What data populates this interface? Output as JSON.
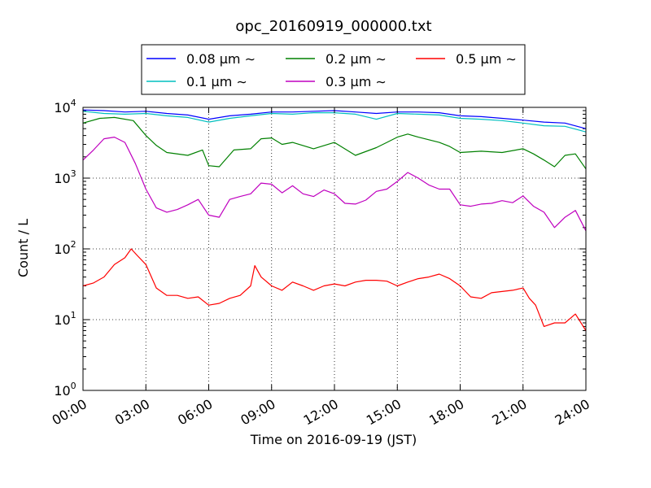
{
  "chart_data": {
    "type": "line",
    "title": "opc_20160919_000000.txt",
    "xlabel": "Time on 2016-09-19 (JST)",
    "ylabel": "Count / L",
    "x_tick_labels": [
      "00:00",
      "03:00",
      "06:00",
      "09:00",
      "12:00",
      "15:00",
      "18:00",
      "21:00",
      "24:00"
    ],
    "x_ticks_hours": [
      0,
      3,
      6,
      9,
      12,
      15,
      18,
      21,
      24
    ],
    "xlim": [
      "2016-09-19 00:00",
      "2016-09-20 00:00"
    ],
    "y_scale": "log",
    "ylim": [
      1,
      10000
    ],
    "y_tick_labels": [
      {
        "base": "10",
        "exp": "0"
      },
      {
        "base": "10",
        "exp": "1"
      },
      {
        "base": "10",
        "exp": "2"
      },
      {
        "base": "10",
        "exp": "3"
      },
      {
        "base": "10",
        "exp": "4"
      }
    ],
    "grid": true,
    "legend_position": "top",
    "series": [
      {
        "name": "0.08 μm ∼",
        "color": "#0000ff",
        "hours": [
          0,
          1,
          2,
          3,
          4,
          5,
          6,
          7,
          8,
          9,
          10,
          11,
          12,
          13,
          14,
          15,
          16,
          17,
          18,
          19,
          20,
          21,
          22,
          23,
          24
        ],
        "values": [
          9200,
          9000,
          8600,
          8800,
          8200,
          7800,
          6800,
          7600,
          8000,
          8600,
          8600,
          8800,
          9000,
          8600,
          8200,
          8600,
          8600,
          8400,
          7600,
          7400,
          7000,
          6600,
          6200,
          6000,
          5000
        ]
      },
      {
        "name": "0.1 μm ∼",
        "color": "#00bfbf",
        "hours": [
          0,
          1,
          2,
          3,
          4,
          5,
          6,
          7,
          8,
          9,
          10,
          11,
          12,
          13,
          14,
          15,
          16,
          17,
          18,
          19,
          20,
          21,
          22,
          23,
          24
        ],
        "values": [
          8800,
          8200,
          8000,
          8200,
          7600,
          7200,
          6200,
          7000,
          7600,
          8200,
          8000,
          8400,
          8400,
          8000,
          6800,
          8200,
          8000,
          7800,
          7000,
          6800,
          6500,
          6000,
          5500,
          5400,
          4500
        ]
      },
      {
        "name": "0.2 μm ∼",
        "color": "#008000",
        "hours": [
          0,
          0.8,
          1.5,
          2.4,
          3,
          3.5,
          4,
          5,
          5.7,
          6,
          6.5,
          7.2,
          8,
          8.5,
          9,
          9.5,
          10,
          11,
          12,
          13,
          14,
          14.5,
          15,
          15.5,
          16,
          17,
          17.5,
          18,
          19,
          20,
          21,
          21.5,
          22,
          22.5,
          23,
          23.5,
          24
        ],
        "values": [
          6000,
          7000,
          7200,
          6500,
          4000,
          2900,
          2300,
          2100,
          2500,
          1500,
          1450,
          2500,
          2600,
          3600,
          3700,
          3000,
          3200,
          2600,
          3200,
          2100,
          2700,
          3200,
          3800,
          4200,
          3800,
          3200,
          2800,
          2300,
          2400,
          2300,
          2600,
          2200,
          1800,
          1450,
          2100,
          2200,
          1350
        ]
      },
      {
        "name": "0.3 μm ∼",
        "color": "#bf00bf",
        "hours": [
          0,
          0.5,
          1,
          1.5,
          2,
          2.5,
          3,
          3.5,
          4,
          4.5,
          5,
          5.5,
          6,
          6.5,
          7,
          7.5,
          8,
          8.5,
          9,
          9.5,
          10,
          10.5,
          11,
          11.5,
          12,
          12.5,
          13,
          13.5,
          14,
          14.5,
          15,
          15.5,
          16,
          16.5,
          17,
          17.5,
          18,
          18.5,
          19,
          19.5,
          20,
          20.5,
          21,
          21.5,
          22,
          22.5,
          23,
          23.5,
          24
        ],
        "values": [
          1800,
          2500,
          3600,
          3800,
          3200,
          1600,
          700,
          380,
          330,
          360,
          420,
          500,
          300,
          280,
          500,
          550,
          600,
          850,
          820,
          620,
          780,
          600,
          550,
          680,
          600,
          440,
          430,
          490,
          650,
          700,
          900,
          1200,
          1000,
          800,
          700,
          700,
          420,
          400,
          430,
          440,
          480,
          450,
          560,
          400,
          330,
          200,
          280,
          350,
          180
        ]
      },
      {
        "name": "0.5 μm ∼",
        "color": "#ff0000",
        "hours": [
          0,
          0.5,
          1,
          1.5,
          2,
          2.3,
          2.6,
          3,
          3.5,
          4,
          4.5,
          5,
          5.5,
          6,
          6.5,
          7,
          7.5,
          8,
          8.2,
          8.5,
          9,
          9.5,
          10,
          10.5,
          11,
          11.5,
          12,
          12.5,
          13,
          13.5,
          14,
          14.5,
          15,
          15.5,
          16,
          16.5,
          17,
          17.5,
          18,
          18.5,
          19,
          19.5,
          20,
          20.5,
          21,
          21.3,
          21.6,
          22,
          22.5,
          23,
          23.5,
          24
        ],
        "values": [
          30,
          33,
          40,
          60,
          75,
          100,
          80,
          60,
          28,
          22,
          22,
          20,
          21,
          16,
          17,
          20,
          22,
          30,
          58,
          40,
          30,
          26,
          34,
          30,
          26,
          30,
          32,
          30,
          34,
          36,
          36,
          35,
          30,
          34,
          38,
          40,
          44,
          38,
          30,
          21,
          20,
          24,
          25,
          26,
          28,
          20,
          16,
          8,
          9,
          9,
          12,
          7
        ]
      }
    ]
  }
}
